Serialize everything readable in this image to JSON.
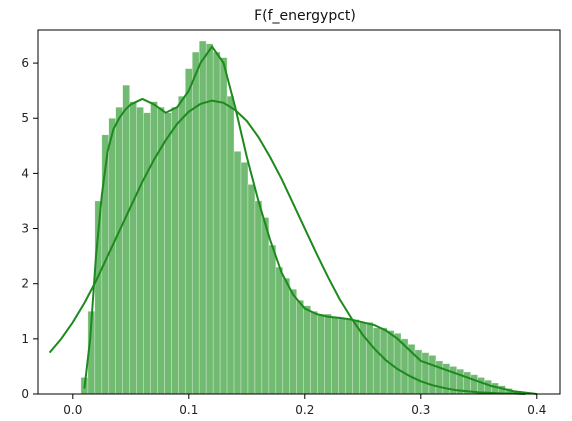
{
  "chart_data": {
    "type": "histogram",
    "title": "F(f_energypct)",
    "xlabel": "",
    "ylabel": "",
    "xlim": [
      -0.03,
      0.42
    ],
    "ylim": [
      0,
      6.6
    ],
    "xticks": [
      "0.0",
      "0.1",
      "0.2",
      "0.3",
      "0.4"
    ],
    "yticks": [
      "0",
      "1",
      "2",
      "3",
      "4",
      "5",
      "6"
    ],
    "grid": false,
    "color": "#2e9a2e",
    "bars": {
      "x": [
        0.01,
        0.016,
        0.022,
        0.028,
        0.034,
        0.04,
        0.046,
        0.052,
        0.058,
        0.064,
        0.07,
        0.076,
        0.082,
        0.088,
        0.094,
        0.1,
        0.106,
        0.112,
        0.118,
        0.124,
        0.13,
        0.136,
        0.142,
        0.148,
        0.154,
        0.16,
        0.166,
        0.172,
        0.178,
        0.184,
        0.19,
        0.196,
        0.202,
        0.208,
        0.214,
        0.22,
        0.226,
        0.232,
        0.238,
        0.244,
        0.25,
        0.256,
        0.262,
        0.268,
        0.274,
        0.28,
        0.286,
        0.292,
        0.298,
        0.304,
        0.31,
        0.316,
        0.322,
        0.328,
        0.334,
        0.34,
        0.346,
        0.352,
        0.358,
        0.364,
        0.37,
        0.376,
        0.382
      ],
      "values": [
        0.3,
        1.5,
        3.5,
        4.7,
        5.0,
        5.2,
        5.6,
        5.3,
        5.2,
        5.1,
        5.3,
        5.2,
        5.1,
        5.2,
        5.4,
        5.9,
        6.2,
        6.4,
        6.35,
        6.2,
        6.1,
        5.4,
        4.4,
        4.2,
        3.8,
        3.5,
        3.2,
        2.7,
        2.3,
        2.1,
        1.9,
        1.7,
        1.6,
        1.5,
        1.45,
        1.45,
        1.4,
        1.38,
        1.35,
        1.35,
        1.3,
        1.3,
        1.2,
        1.2,
        1.15,
        1.1,
        1.0,
        0.9,
        0.8,
        0.75,
        0.7,
        0.6,
        0.55,
        0.5,
        0.45,
        0.4,
        0.35,
        0.3,
        0.25,
        0.2,
        0.15,
        0.1,
        0.05
      ]
    },
    "series": [
      {
        "type": "line",
        "x": [
          0.01,
          0.015,
          0.02,
          0.025,
          0.03,
          0.035,
          0.04,
          0.045,
          0.05,
          0.06,
          0.07,
          0.08,
          0.09,
          0.1,
          0.11,
          0.12,
          0.13,
          0.14,
          0.15,
          0.16,
          0.17,
          0.18,
          0.19,
          0.2,
          0.21,
          0.22,
          0.23,
          0.24,
          0.25,
          0.26,
          0.27,
          0.28,
          0.3,
          0.32,
          0.34,
          0.36,
          0.38,
          0.4
        ],
        "values": [
          0.1,
          1.0,
          2.5,
          3.6,
          4.4,
          4.8,
          5.0,
          5.15,
          5.25,
          5.35,
          5.25,
          5.1,
          5.2,
          5.5,
          6.0,
          6.3,
          6.0,
          5.2,
          4.3,
          3.5,
          2.8,
          2.2,
          1.8,
          1.55,
          1.45,
          1.4,
          1.38,
          1.35,
          1.3,
          1.25,
          1.15,
          1.0,
          0.6,
          0.45,
          0.3,
          0.15,
          0.05,
          0.0
        ]
      },
      {
        "type": "line",
        "x": [
          -0.02,
          -0.01,
          0.0,
          0.01,
          0.02,
          0.03,
          0.04,
          0.05,
          0.06,
          0.07,
          0.08,
          0.09,
          0.1,
          0.11,
          0.12,
          0.13,
          0.14,
          0.15,
          0.16,
          0.17,
          0.18,
          0.19,
          0.2,
          0.21,
          0.22,
          0.23,
          0.24,
          0.25,
          0.26,
          0.27,
          0.28,
          0.29,
          0.3,
          0.31,
          0.32,
          0.33,
          0.34,
          0.35,
          0.36,
          0.37,
          0.38,
          0.39
        ],
        "values": [
          0.75,
          1.0,
          1.3,
          1.65,
          2.05,
          2.5,
          2.95,
          3.4,
          3.85,
          4.25,
          4.6,
          4.9,
          5.12,
          5.26,
          5.32,
          5.28,
          5.15,
          4.95,
          4.66,
          4.3,
          3.9,
          3.45,
          3.0,
          2.55,
          2.12,
          1.72,
          1.38,
          1.07,
          0.82,
          0.61,
          0.45,
          0.33,
          0.23,
          0.16,
          0.11,
          0.07,
          0.05,
          0.03,
          0.02,
          0.01,
          0.01,
          0.0
        ]
      }
    ]
  }
}
